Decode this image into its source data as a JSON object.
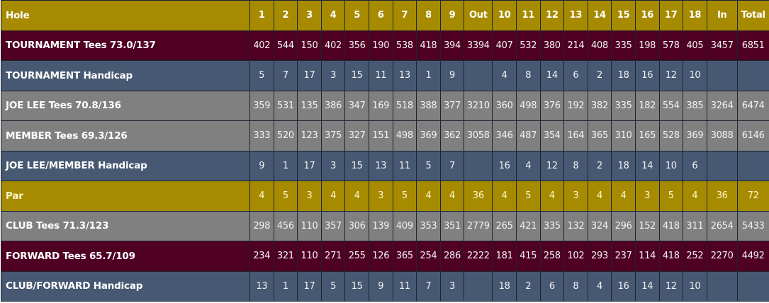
{
  "colors": {
    "gold": "#a68b00",
    "maroon": "#4f0023",
    "slate": "#475872",
    "gray": "#808080"
  },
  "scorecard": {
    "header": {
      "label": "Hole",
      "cells": [
        "1",
        "2",
        "3",
        "4",
        "5",
        "6",
        "7",
        "8",
        "9",
        "Out",
        "10",
        "11",
        "12",
        "13",
        "14",
        "15",
        "16",
        "17",
        "18",
        "In",
        "Total"
      ]
    },
    "rows": [
      {
        "label": "TOURNAMENT Tees 73.0/137",
        "style": "maroon",
        "cells": [
          "402",
          "544",
          "150",
          "402",
          "356",
          "190",
          "538",
          "418",
          "394",
          "3394",
          "407",
          "532",
          "380",
          "214",
          "408",
          "335",
          "198",
          "578",
          "405",
          "3457",
          "6851"
        ]
      },
      {
        "label": "TOURNAMENT Handicap",
        "style": "slate",
        "cells": [
          "5",
          "7",
          "17",
          "3",
          "15",
          "11",
          "13",
          "1",
          "9",
          "",
          "4",
          "8",
          "14",
          "6",
          "2",
          "18",
          "16",
          "12",
          "10",
          "",
          ""
        ]
      },
      {
        "label": "JOE LEE Tees 70.8/136",
        "style": "gray",
        "cells": [
          "359",
          "531",
          "135",
          "386",
          "347",
          "169",
          "518",
          "388",
          "377",
          "3210",
          "360",
          "498",
          "376",
          "192",
          "382",
          "335",
          "182",
          "554",
          "385",
          "3264",
          "6474"
        ]
      },
      {
        "label": "MEMBER Tees 69.3/126",
        "style": "gray",
        "cells": [
          "333",
          "520",
          "123",
          "375",
          "327",
          "151",
          "498",
          "369",
          "362",
          "3058",
          "346",
          "487",
          "354",
          "164",
          "365",
          "310",
          "165",
          "528",
          "369",
          "3088",
          "6146"
        ]
      },
      {
        "label": "JOE LEE/MEMBER Handicap",
        "style": "slate",
        "cells": [
          "9",
          "1",
          "17",
          "3",
          "15",
          "13",
          "11",
          "5",
          "7",
          "",
          "16",
          "4",
          "12",
          "8",
          "2",
          "18",
          "14",
          "10",
          "6",
          "",
          ""
        ]
      },
      {
        "label": "Par",
        "style": "gold",
        "cells": [
          "4",
          "5",
          "3",
          "4",
          "4",
          "3",
          "5",
          "4",
          "4",
          "36",
          "4",
          "5",
          "4",
          "3",
          "4",
          "4",
          "3",
          "5",
          "4",
          "36",
          "72"
        ]
      },
      {
        "label": "CLUB Tees 71.3/123",
        "style": "gray",
        "cells": [
          "298",
          "456",
          "110",
          "357",
          "306",
          "139",
          "409",
          "353",
          "351",
          "2779",
          "265",
          "421",
          "335",
          "132",
          "324",
          "296",
          "152",
          "418",
          "311",
          "2654",
          "5433"
        ]
      },
      {
        "label": "FORWARD Tees 65.7/109",
        "style": "maroon",
        "cells": [
          "234",
          "321",
          "110",
          "271",
          "255",
          "126",
          "365",
          "254",
          "286",
          "2222",
          "181",
          "415",
          "258",
          "102",
          "293",
          "237",
          "114",
          "418",
          "252",
          "2270",
          "4492"
        ]
      },
      {
        "label": "CLUB/FORWARD Handicap",
        "style": "slate",
        "cells": [
          "13",
          "1",
          "17",
          "5",
          "15",
          "9",
          "11",
          "7",
          "3",
          "",
          "18",
          "2",
          "6",
          "8",
          "4",
          "16",
          "14",
          "12",
          "10",
          "",
          ""
        ]
      }
    ]
  }
}
